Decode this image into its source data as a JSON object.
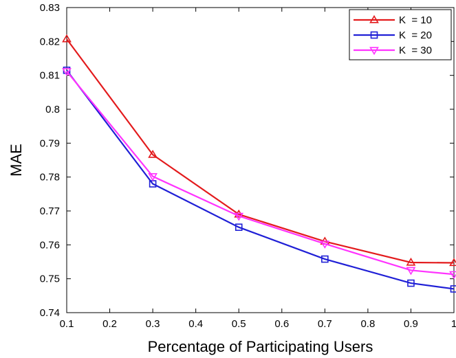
{
  "chart_data": {
    "type": "line",
    "xlabel": "Percentage of Participating Users",
    "ylabel": "MAE",
    "xlim": [
      0.1,
      1.0
    ],
    "ylim": [
      0.74,
      0.83
    ],
    "xticks": [
      0.1,
      0.2,
      0.3,
      0.4,
      0.5,
      0.6,
      0.7,
      0.8,
      0.9,
      1.0
    ],
    "xtick_labels": [
      "0.1",
      "0.2",
      "0.3",
      "0.4",
      "0.5",
      "0.6",
      "0.7",
      "0.8",
      "0.9",
      "1"
    ],
    "yticks": [
      0.74,
      0.75,
      0.76,
      0.77,
      0.78,
      0.79,
      0.8,
      0.81,
      0.82,
      0.83
    ],
    "ytick_labels": [
      "0.74",
      "0.75",
      "0.76",
      "0.77",
      "0.78",
      "0.79",
      "0.8",
      "0.81",
      "0.82",
      "0.83"
    ],
    "grid": false,
    "legend_position": "top-right",
    "x": [
      0.1,
      0.3,
      0.5,
      0.7,
      0.9,
      1.0
    ],
    "series": [
      {
        "name": "K  = 10",
        "marker": "triangle-up",
        "color": "#e31a1c",
        "values": [
          0.8207,
          0.7866,
          0.769,
          0.761,
          0.7548,
          0.7547
        ]
      },
      {
        "name": "K  = 20",
        "marker": "square",
        "color": "#1f1fd6",
        "values": [
          0.8115,
          0.778,
          0.7652,
          0.7558,
          0.7487,
          0.747
        ]
      },
      {
        "name": "K  = 30",
        "marker": "triangle-down",
        "color": "#ff33ff",
        "values": [
          0.8112,
          0.7802,
          0.7685,
          0.7603,
          0.7525,
          0.7513
        ]
      }
    ]
  }
}
